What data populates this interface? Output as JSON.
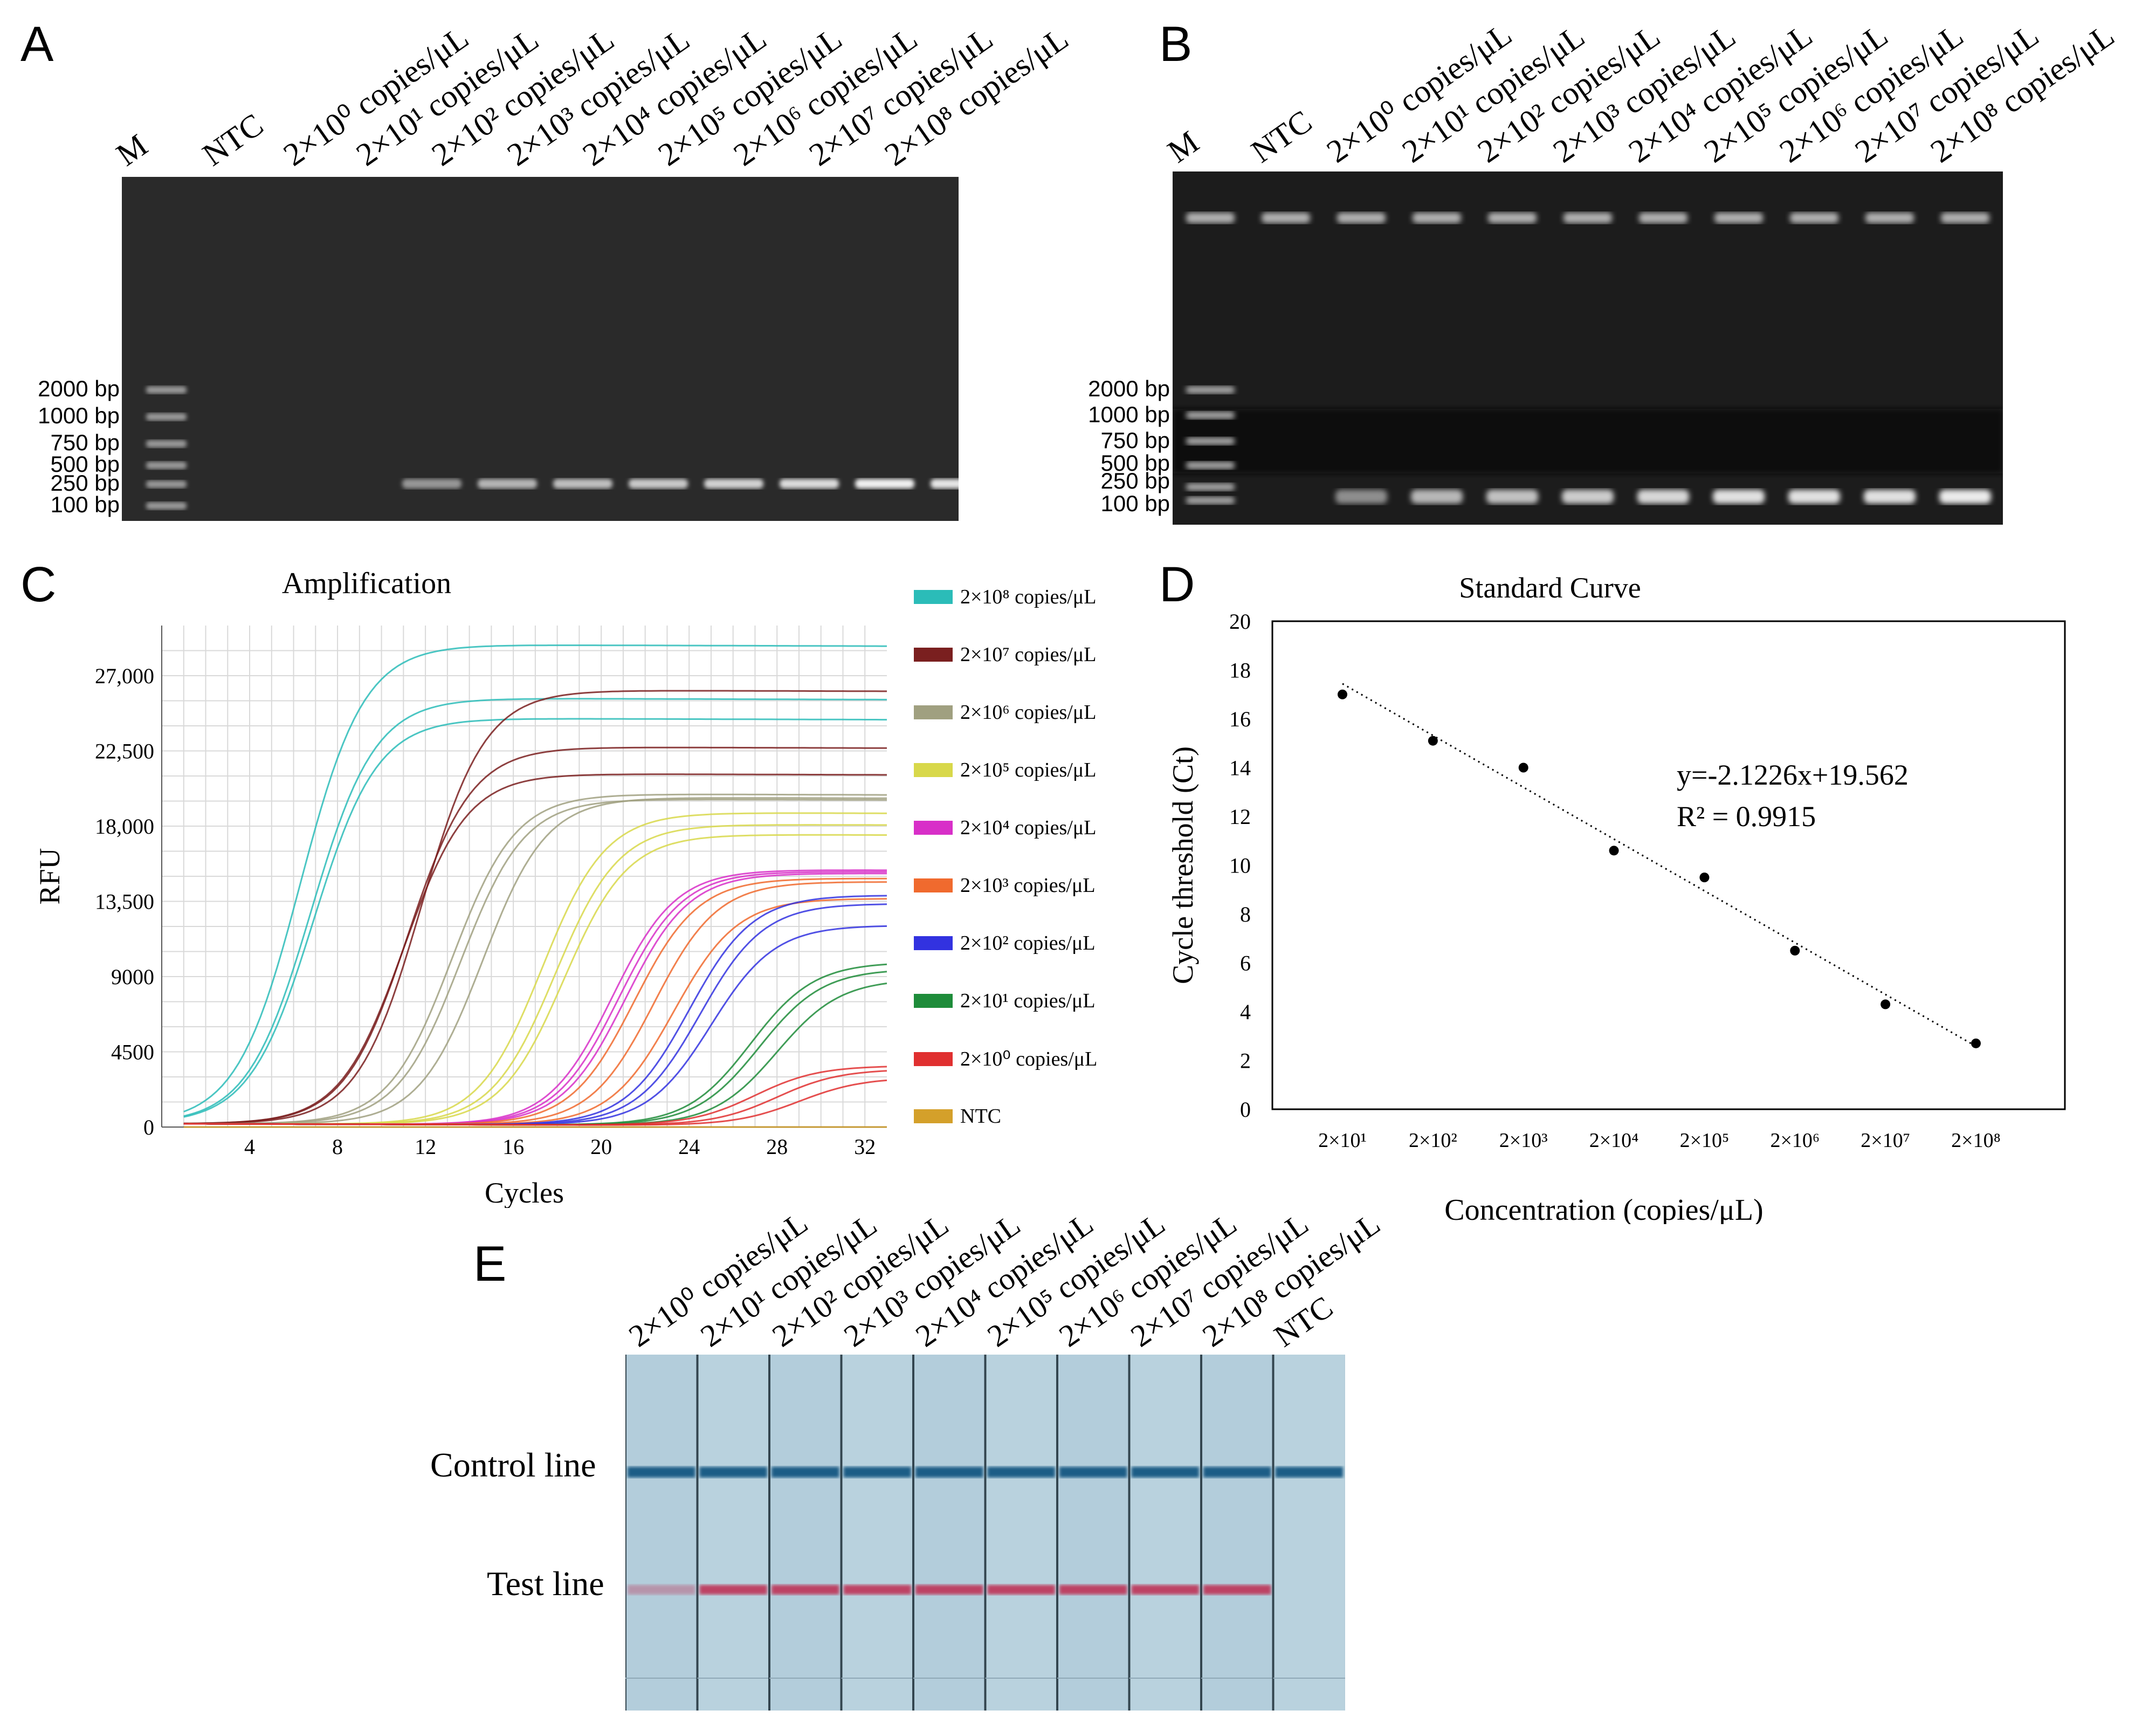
{
  "panels": {
    "a": "A",
    "b": "B",
    "c": "C",
    "d": "D",
    "e": "E"
  },
  "gel_a": {
    "lanes": [
      "M",
      "NTC",
      "2×10⁰ copies/μL",
      "2×10¹ copies/μL",
      "2×10² copies/μL",
      "2×10³ copies/μL",
      "2×10⁴ copies/μL",
      "2×10⁵ copies/μL",
      "2×10⁶ copies/μL",
      "2×10⁷ copies/μL",
      "2×10⁸ copies/μL"
    ],
    "ladder": [
      "2000 bp",
      "1000 bp",
      "750 bp",
      "500 bp",
      "250 bp",
      "100 bp"
    ]
  },
  "gel_b": {
    "lanes": [
      "M",
      "NTC",
      "2×10⁰ copies/μL",
      "2×10¹ copies/μL",
      "2×10² copies/μL",
      "2×10³ copies/μL",
      "2×10⁴ copies/μL",
      "2×10⁵ copies/μL",
      "2×10⁶ copies/μL",
      "2×10⁷ copies/μL",
      "2×10⁸ copies/μL"
    ],
    "ladder": [
      "2000 bp",
      "1000 bp",
      "750 bp",
      "500 bp",
      "250 bp",
      "100 bp"
    ]
  },
  "chart_data": [
    {
      "type": "line",
      "title": "Amplification",
      "xlabel": "Cycles",
      "ylabel": "RFU",
      "xlim": [
        0,
        33
      ],
      "ylim": [
        0,
        30000
      ],
      "xticks": [
        "4",
        "8",
        "12",
        "16",
        "20",
        "24",
        "28",
        "32"
      ],
      "yticks": [
        "0",
        "4500",
        "9000",
        "13,500",
        "18,000",
        "22,500",
        "27,000"
      ],
      "grid": true,
      "legend_position": "right",
      "series": [
        {
          "name": "2×10⁸ copies/μL",
          "color": "#2bbcb8",
          "replicates": [
            {
              "x0": 6.3,
              "plateau": 28700
            },
            {
              "x0": 6.8,
              "plateau": 25500
            },
            {
              "x0": 6.9,
              "plateau": 24300
            }
          ]
        },
        {
          "name": "2×10⁷ copies/μL",
          "color": "#7a1f1f",
          "replicates": [
            {
              "x0": 11.8,
              "plateau": 26000
            },
            {
              "x0": 11.2,
              "plateau": 22600
            },
            {
              "x0": 11.0,
              "plateau": 21000
            }
          ]
        },
        {
          "name": "2×10⁶ copies/μL",
          "color": "#a0a080",
          "replicates": [
            {
              "x0": 13.2,
              "plateau": 19800
            },
            {
              "x0": 13.6,
              "plateau": 19500
            },
            {
              "x0": 14.6,
              "plateau": 19600
            }
          ]
        },
        {
          "name": "2×10⁵ copies/μL",
          "color": "#d8d84a",
          "replicates": [
            {
              "x0": 17.3,
              "plateau": 18700
            },
            {
              "x0": 17.9,
              "plateau": 18000
            },
            {
              "x0": 18.3,
              "plateau": 17400
            }
          ]
        },
        {
          "name": "2×10⁴ copies/μL",
          "color": "#d82fc8",
          "replicates": [
            {
              "x0": 20.5,
              "plateau": 15300
            },
            {
              "x0": 20.8,
              "plateau": 15200
            },
            {
              "x0": 21.1,
              "plateau": 15100
            }
          ]
        },
        {
          "name": "2×10³ copies/μL",
          "color": "#f06a2e",
          "replicates": [
            {
              "x0": 21.5,
              "plateau": 14800
            },
            {
              "x0": 22.4,
              "plateau": 14600
            },
            {
              "x0": 23.3,
              "plateau": 13600
            }
          ]
        },
        {
          "name": "2×10² copies/μL",
          "color": "#3232e0",
          "replicates": [
            {
              "x0": 24.0,
              "plateau": 13800
            },
            {
              "x0": 24.5,
              "plateau": 13300
            },
            {
              "x0": 25.0,
              "plateau": 12000
            }
          ]
        },
        {
          "name": "2×10¹ copies/μL",
          "color": "#1e8c3a",
          "replicates": [
            {
              "x0": 26.8,
              "plateau": 9800
            },
            {
              "x0": 27.2,
              "plateau": 9400
            },
            {
              "x0": 28.0,
              "plateau": 8800
            }
          ]
        },
        {
          "name": "2×10⁰ copies/μL",
          "color": "#e03030",
          "replicates": [
            {
              "x0": 27.0,
              "plateau": 3600
            },
            {
              "x0": 28.0,
              "plateau": 3400
            },
            {
              "x0": 29.0,
              "plateau": 2900
            }
          ]
        },
        {
          "name": "NTC",
          "color": "#d4a02a",
          "replicates": [
            {
              "x0": 99,
              "plateau": 0
            }
          ]
        }
      ]
    },
    {
      "type": "scatter",
      "title": "Standard Curve",
      "xlabel": "Concentration (copies/μL)",
      "ylabel": "Cycle threshold (Ct)",
      "categories": [
        "2×10¹",
        "2×10²",
        "2×10³",
        "2×10⁴",
        "2×10⁵",
        "2×10⁶",
        "2×10⁷",
        "2×10⁸"
      ],
      "values": [
        17.0,
        15.1,
        14.0,
        10.6,
        9.5,
        6.5,
        4.3,
        2.7
      ],
      "ylim": [
        0,
        20
      ],
      "yticks": [
        "0",
        "2",
        "4",
        "6",
        "8",
        "10",
        "12",
        "14",
        "16",
        "18",
        "20"
      ],
      "trendline": {
        "slope": -2.1226,
        "intercept": 19.562
      },
      "equation": "y=-2.1226x+19.562",
      "r2": "R² = 0.9915"
    }
  ],
  "strip": {
    "lanes": [
      "2×10⁰ copies/μL",
      "2×10¹ copies/μL",
      "2×10² copies/μL",
      "2×10³ copies/μL",
      "2×10⁴ copies/μL",
      "2×10⁵ copies/μL",
      "2×10⁶ copies/μL",
      "2×10⁷ copies/μL",
      "2×10⁸ copies/μL",
      "NTC"
    ],
    "control_label": "Control line",
    "test_label": "Test line"
  }
}
